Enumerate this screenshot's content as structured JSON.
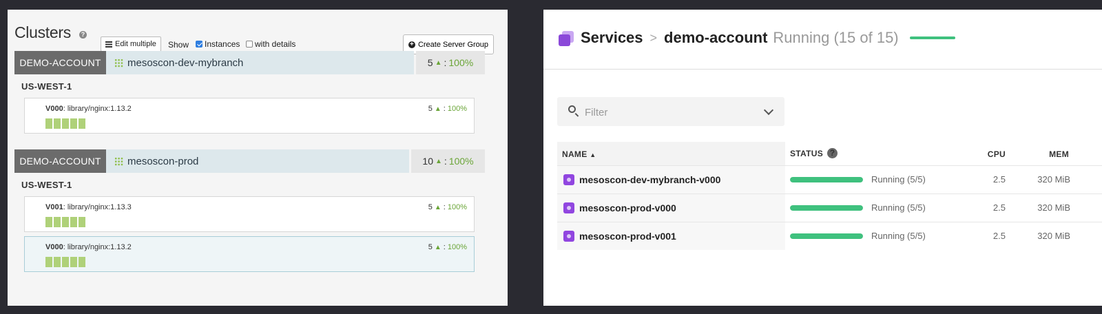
{
  "left": {
    "title": "Clusters",
    "help_glyph": "?",
    "edit_multiple_label": "Edit multiple",
    "show_label": "Show",
    "instances_label": "Instances",
    "instances_checked": true,
    "details_label": "with details",
    "details_checked": false,
    "create_label": "Create Server Group",
    "clusters": [
      {
        "account": "DEMO-ACCOUNT",
        "name": "mesoscon-dev-mybranch",
        "count": "5",
        "pct": "100%",
        "region": "US-WEST-1",
        "groups": [
          {
            "version": "V000",
            "image": ": library/nginx:1.13.2",
            "count": "5",
            "pct": "100%"
          }
        ]
      },
      {
        "account": "DEMO-ACCOUNT",
        "name": "mesoscon-prod",
        "count": "10",
        "pct": "100%",
        "region": "US-WEST-1",
        "groups": [
          {
            "version": "V001",
            "image": ": library/nginx:1.13.3",
            "count": "5",
            "pct": "100%"
          },
          {
            "version": "V000",
            "image": ": library/nginx:1.13.2",
            "count": "5",
            "pct": "100%"
          }
        ]
      }
    ]
  },
  "right": {
    "breadcrumb": {
      "services": "Services",
      "separator": ">",
      "account": "demo-account",
      "state": "Running (15 of 15)"
    },
    "filter_placeholder": "Filter",
    "columns": {
      "name": "NAME",
      "status": "STATUS",
      "cpu": "CPU",
      "mem": "MEM",
      "help": "?"
    },
    "rows": [
      {
        "name": "mesoscon-dev-mybranch-v000",
        "status": "Running (5/5)",
        "progress": 1.0,
        "cpu": "2.5",
        "mem": "320 MiB"
      },
      {
        "name": "mesoscon-prod-v000",
        "status": "Running (5/5)",
        "progress": 1.0,
        "cpu": "2.5",
        "mem": "320 MiB"
      },
      {
        "name": "mesoscon-prod-v001",
        "status": "Running (5/5)",
        "progress": 1.0,
        "cpu": "2.5",
        "mem": "320 MiB"
      }
    ]
  },
  "colors": {
    "healthy_green": "#3fc17e",
    "instance_green": "#afd179",
    "accent_purple": "#8b49d9"
  }
}
